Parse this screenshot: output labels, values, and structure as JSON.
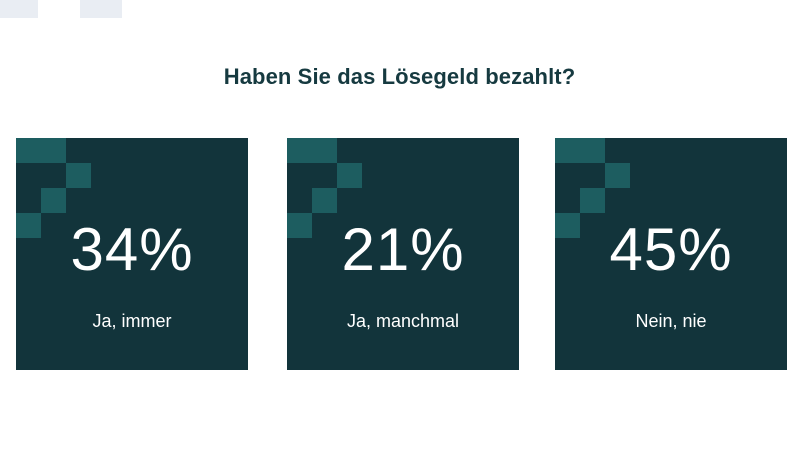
{
  "chart_data": {
    "type": "bar",
    "title": "Haben Sie das Lösegeld bezahlt?",
    "categories": [
      "Ja, immer",
      "Ja, manchmal",
      "Nein, nie"
    ],
    "values": [
      34,
      21,
      45
    ],
    "value_labels": [
      "34%",
      "21%",
      "45%"
    ],
    "unit": "%"
  },
  "colors": {
    "card_background": "#12343b",
    "pattern_accent": "#1d5d60",
    "title_text": "#163a40",
    "value_text": "#ffffff"
  }
}
